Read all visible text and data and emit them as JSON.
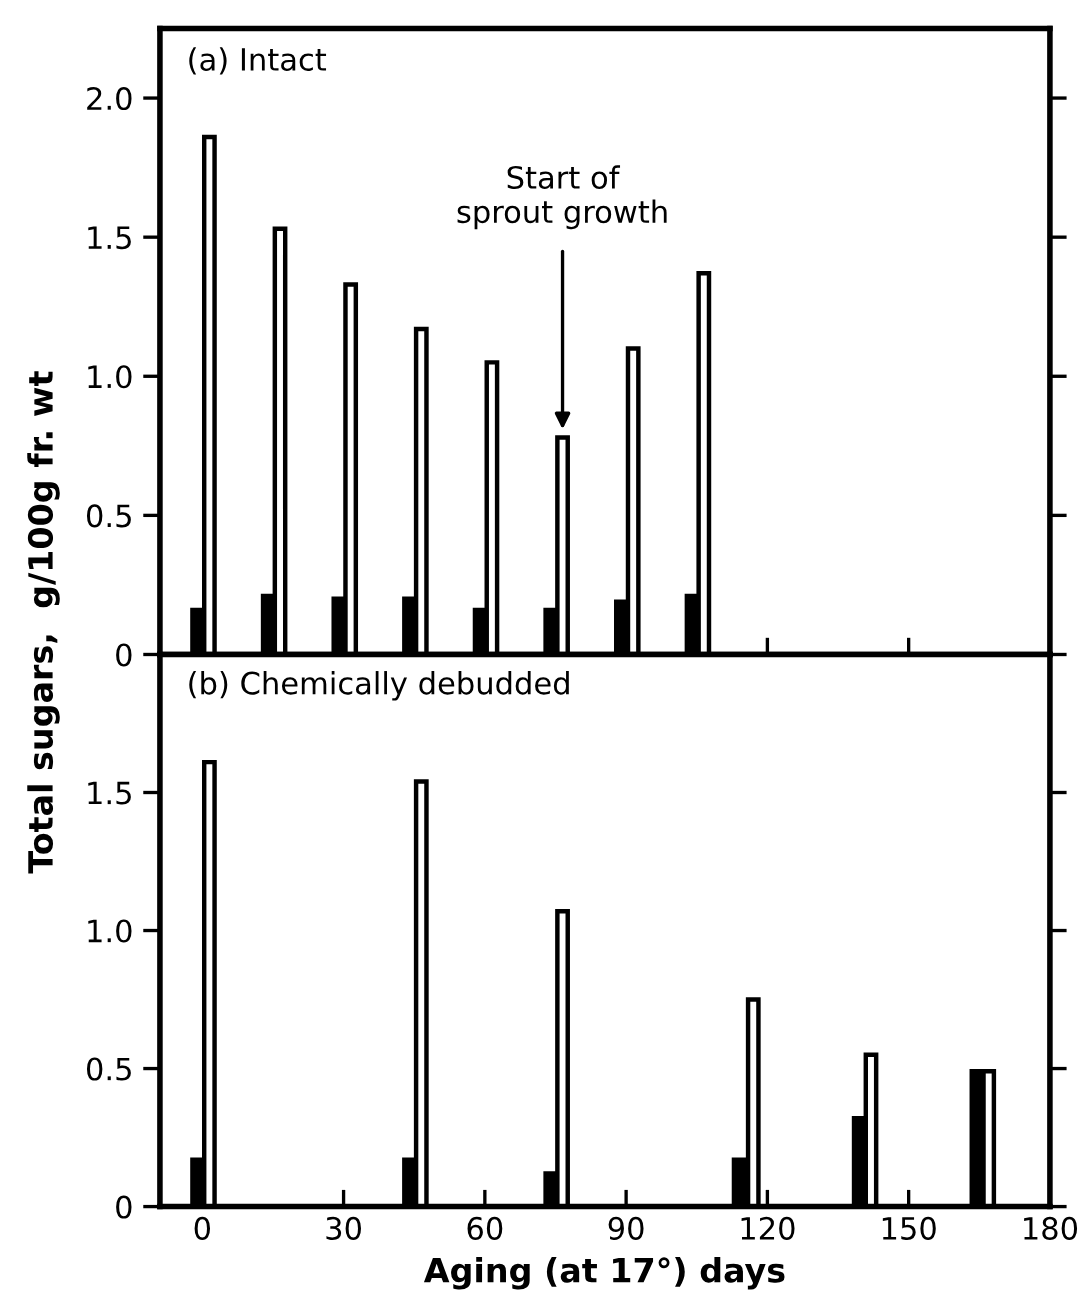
{
  "chart_data": [
    {
      "type": "bar",
      "ylabel": "Total sugars,  g/100g fr. wt",
      "annotations": [
        "(a) Intact",
        {
          "text": "Start of\nsprout growth",
          "x": 76.5,
          "y": 0.78
        }
      ],
      "xlim": [
        -9,
        180
      ],
      "xticks": [
        {
          "value": 0,
          "label": null
        },
        {
          "value": 30,
          "label": null
        },
        {
          "value": 60,
          "label": null
        },
        {
          "value": 90,
          "label": null
        },
        {
          "value": 120,
          "label": null
        },
        {
          "value": 150,
          "label": null
        },
        {
          "value": 180,
          "label": null
        }
      ],
      "tick_labels": "y",
      "ylim": [
        0,
        2.25
      ],
      "yticks": [
        0,
        {
          "value": 0.5,
          "label": "0.5"
        },
        {
          "value": 1.0,
          "label": "1.0"
        },
        {
          "value": 1.5,
          "label": "1.5"
        },
        {
          "value": 2.0,
          "label": "2.0"
        }
      ],
      "grid": false,
      "legend": false,
      "series": [
        {
          "color": "#000000",
          "x": [
            -1,
            14,
            29,
            44,
            59,
            74,
            89,
            104
          ],
          "values": [
            0.16,
            0.21,
            0.2,
            0.2,
            0.16,
            0.16,
            0.19,
            0.21
          ]
        },
        {
          "color": "#ffffff",
          "x": [
            1.5,
            16.5,
            31.5,
            46.5,
            61.5,
            76.5,
            91.5,
            106.5
          ],
          "values": [
            1.86,
            1.53,
            1.33,
            1.17,
            1.05,
            0.78,
            1.1,
            1.37
          ]
        }
      ]
    },
    {
      "type": "bar",
      "xlabel": "Aging (at 17°) days",
      "annotations": [
        "(b) Chemically debudded"
      ],
      "xlim": [
        -9,
        180
      ],
      "xticks": [
        0,
        30,
        60,
        90,
        120,
        150,
        180
      ],
      "ylim": [
        0,
        2.0
      ],
      "yticks": [
        0,
        {
          "value": 0.5,
          "label": "0.5"
        },
        {
          "value": 1.0,
          "label": "1.0"
        },
        {
          "value": 1.5,
          "label": "1.5"
        }
      ],
      "grid": false,
      "legend": false,
      "series": [
        {
          "color": "#000000",
          "x": [
            -1,
            44,
            74,
            114,
            139.5,
            164.5
          ],
          "values": [
            0.17,
            0.17,
            0.12,
            0.17,
            0.32,
            0.49
          ]
        },
        {
          "color": "#ffffff",
          "x": [
            1.5,
            46.5,
            76.5,
            117,
            142,
            167
          ],
          "values": [
            1.61,
            1.54,
            1.07,
            0.75,
            0.55,
            0.49
          ]
        }
      ]
    }
  ]
}
